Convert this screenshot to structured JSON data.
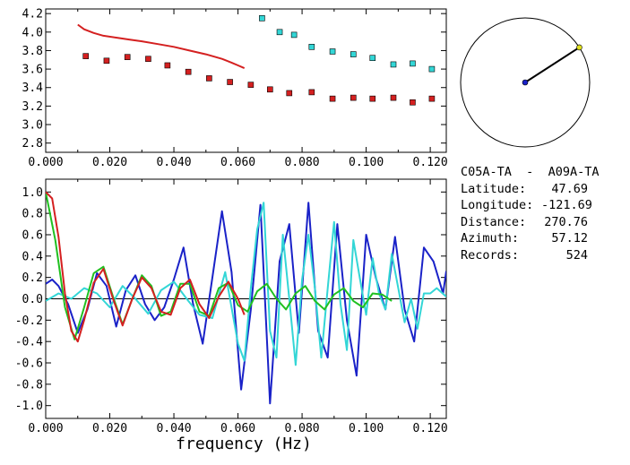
{
  "chart_data": [
    {
      "id": "upper",
      "type": "scatter",
      "xlim": [
        0.0,
        0.125
      ],
      "ylim": [
        2.7,
        4.25
      ],
      "xticks": [
        "0.000",
        "0.020",
        "0.040",
        "0.060",
        "0.080",
        "0.100",
        "0.120"
      ],
      "yticks": [
        "2.8",
        "3.0",
        "3.2",
        "3.4",
        "3.6",
        "3.8",
        "4.0",
        "4.2"
      ],
      "series": [
        {
          "kind": "line",
          "color": "#d42020",
          "x": [
            0.01,
            0.012,
            0.015,
            0.018,
            0.022,
            0.026,
            0.03,
            0.035,
            0.04,
            0.045,
            0.05,
            0.055,
            0.058,
            0.06,
            0.062
          ],
          "y": [
            4.08,
            4.03,
            3.99,
            3.96,
            3.94,
            3.92,
            3.9,
            3.87,
            3.84,
            3.8,
            3.76,
            3.71,
            3.67,
            3.64,
            3.61
          ]
        },
        {
          "kind": "markers",
          "color": "#d42020",
          "x": [
            0.0125,
            0.019,
            0.0255,
            0.032,
            0.038,
            0.0445,
            0.051,
            0.0575,
            0.064,
            0.07,
            0.076,
            0.083,
            0.0895,
            0.096,
            0.102,
            0.1085,
            0.1145,
            0.1205
          ],
          "y": [
            3.74,
            3.69,
            3.73,
            3.71,
            3.64,
            3.57,
            3.5,
            3.46,
            3.43,
            3.38,
            3.34,
            3.35,
            3.28,
            3.29,
            3.28,
            3.29,
            3.24,
            3.28
          ]
        },
        {
          "kind": "markers",
          "color": "#33d6d6",
          "x": [
            0.0675,
            0.073,
            0.0775,
            0.083,
            0.0895,
            0.096,
            0.102,
            0.1085,
            0.1145,
            0.1205
          ],
          "y": [
            4.15,
            4.0,
            3.97,
            3.84,
            3.79,
            3.76,
            3.72,
            3.65,
            3.66,
            3.6
          ]
        }
      ]
    },
    {
      "id": "lower",
      "type": "line",
      "xlim": [
        0.0,
        0.125
      ],
      "ylim": [
        -1.12,
        1.12
      ],
      "xticks": [
        "0.000",
        "0.020",
        "0.040",
        "0.060",
        "0.080",
        "0.100",
        "0.120"
      ],
      "yticks": [
        "1.0",
        "0.8",
        "0.6",
        "0.4",
        "0.2",
        "0.0",
        "-0.2",
        "-0.4",
        "-0.6",
        "-0.8",
        "-1.0"
      ],
      "xlabel": "frequency (Hz)",
      "series": [
        {
          "color": "#1a22c8",
          "x": [
            0.0,
            0.002,
            0.004,
            0.007,
            0.01,
            0.013,
            0.016,
            0.019,
            0.022,
            0.025,
            0.028,
            0.031,
            0.034,
            0.037,
            0.04,
            0.043,
            0.046,
            0.049,
            0.052,
            0.055,
            0.058,
            0.061,
            0.064,
            0.067,
            0.07,
            0.073,
            0.076,
            0.079,
            0.082,
            0.085,
            0.088,
            0.091,
            0.094,
            0.097,
            0.1,
            0.103,
            0.106,
            0.109,
            0.112,
            0.115,
            0.118,
            0.121,
            0.124,
            0.125
          ],
          "y": [
            0.14,
            0.18,
            0.12,
            -0.05,
            -0.32,
            -0.1,
            0.24,
            0.12,
            -0.26,
            0.08,
            0.22,
            -0.05,
            -0.2,
            -0.08,
            0.18,
            0.48,
            -0.05,
            -0.42,
            0.2,
            0.82,
            0.25,
            -0.85,
            -0.1,
            0.88,
            -0.98,
            0.35,
            0.7,
            -0.32,
            0.9,
            -0.3,
            -0.55,
            0.7,
            -0.2,
            -0.72,
            0.6,
            0.2,
            -0.1,
            0.58,
            -0.1,
            -0.4,
            0.48,
            0.35,
            0.05,
            0.26
          ]
        },
        {
          "color": "#33d6d6",
          "x": [
            0.0,
            0.004,
            0.008,
            0.012,
            0.016,
            0.02,
            0.024,
            0.028,
            0.032,
            0.036,
            0.04,
            0.044,
            0.048,
            0.052,
            0.056,
            0.06,
            0.062,
            0.064,
            0.066,
            0.068,
            0.07,
            0.072,
            0.074,
            0.076,
            0.078,
            0.08,
            0.082,
            0.084,
            0.086,
            0.088,
            0.09,
            0.092,
            0.094,
            0.096,
            0.098,
            0.1,
            0.102,
            0.104,
            0.106,
            0.108,
            0.11,
            0.112,
            0.114,
            0.116,
            0.118,
            0.12,
            0.122,
            0.125
          ],
          "y": [
            -0.02,
            0.05,
            0.0,
            0.1,
            0.05,
            -0.08,
            0.12,
            0.0,
            -0.14,
            0.08,
            0.16,
            0.0,
            -0.15,
            -0.18,
            0.25,
            -0.42,
            -0.58,
            0.1,
            0.65,
            0.9,
            -0.3,
            -0.55,
            0.6,
            0.0,
            -0.62,
            0.18,
            0.6,
            0.1,
            -0.55,
            0.1,
            0.72,
            -0.05,
            -0.48,
            0.55,
            0.2,
            -0.15,
            0.38,
            0.05,
            -0.1,
            0.42,
            0.1,
            -0.22,
            0.0,
            -0.28,
            0.05,
            0.05,
            0.1,
            0.02
          ]
        },
        {
          "color": "#20c020",
          "x": [
            0.0,
            0.003,
            0.006,
            0.009,
            0.012,
            0.015,
            0.018,
            0.021,
            0.024,
            0.027,
            0.03,
            0.033,
            0.036,
            0.039,
            0.042,
            0.045,
            0.048,
            0.051,
            0.054,
            0.057,
            0.06,
            0.063,
            0.066,
            0.069,
            0.072,
            0.075,
            0.078,
            0.081,
            0.084,
            0.087,
            0.09,
            0.093,
            0.096,
            0.099,
            0.102,
            0.105,
            0.108
          ],
          "y": [
            1.0,
            0.55,
            -0.08,
            -0.38,
            -0.08,
            0.24,
            0.3,
            0.02,
            -0.24,
            0.0,
            0.22,
            0.12,
            -0.16,
            -0.12,
            0.14,
            0.14,
            -0.12,
            -0.16,
            0.1,
            0.15,
            -0.06,
            -0.12,
            0.07,
            0.14,
            0.0,
            -0.1,
            0.05,
            0.12,
            -0.02,
            -0.1,
            0.04,
            0.1,
            -0.02,
            -0.08,
            0.05,
            0.04,
            -0.02
          ]
        },
        {
          "color": "#d42020",
          "x": [
            0.0,
            0.002,
            0.004,
            0.006,
            0.008,
            0.01,
            0.012,
            0.015,
            0.018,
            0.021,
            0.024,
            0.027,
            0.03,
            0.033,
            0.036,
            0.039,
            0.042,
            0.045,
            0.048,
            0.051,
            0.054,
            0.057,
            0.06,
            0.062
          ],
          "y": [
            1.0,
            0.94,
            0.58,
            0.05,
            -0.3,
            -0.4,
            -0.2,
            0.15,
            0.28,
            0.0,
            -0.25,
            0.0,
            0.2,
            0.1,
            -0.12,
            -0.15,
            0.1,
            0.18,
            -0.05,
            -0.18,
            0.02,
            0.16,
            0.0,
            -0.15
          ]
        }
      ]
    }
  ],
  "polar": {
    "azimuth_deg": 57.12,
    "line_color": "#000000",
    "center_color": "#1a22c8",
    "end_color": "#e0e020"
  },
  "info": {
    "station_a": "C05A-TA",
    "separator": "-",
    "station_b": "A09A-TA",
    "rows": [
      {
        "label": "Latitude:",
        "value": "47.69"
      },
      {
        "label": "Longitude:",
        "value": "-121.69"
      },
      {
        "label": "Distance:",
        "value": "270.76"
      },
      {
        "label": "Azimuth:",
        "value": "57.12"
      },
      {
        "label": "Records:",
        "value": "524"
      }
    ]
  }
}
